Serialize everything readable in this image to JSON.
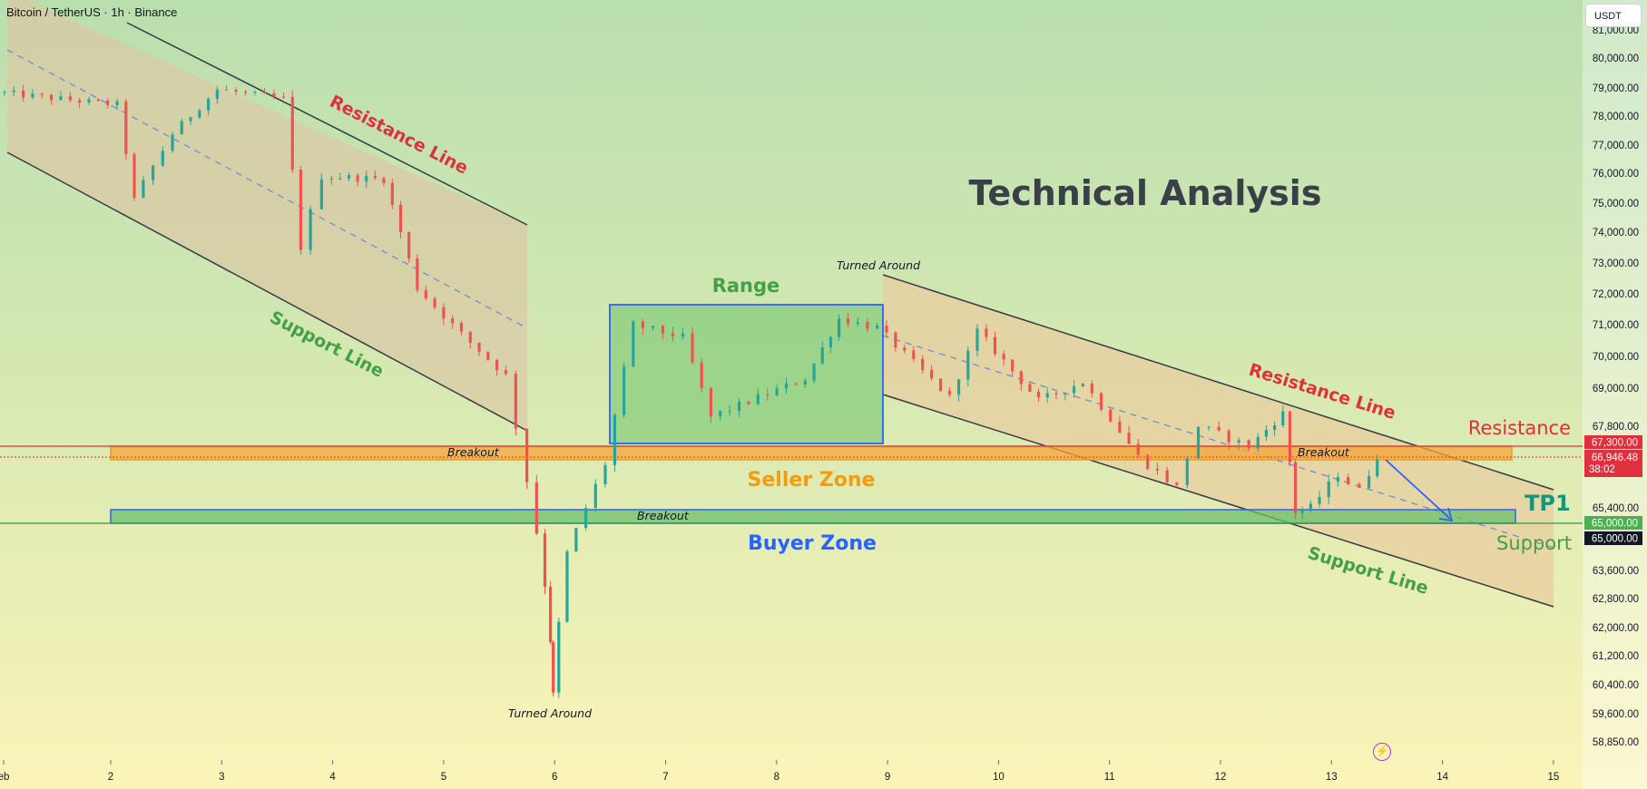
{
  "header": {
    "symbol_title": "Bitcoin / TetherUS · 1h · Binance",
    "currency_button": "USDT"
  },
  "colors": {
    "resistance_red": "#e0303e",
    "support_green": "#43a047",
    "seller_orange": "#f39c12",
    "buyer_blue": "#2962ff",
    "range_green": "#4caf50",
    "up_candle": "#26a69a",
    "down_candle": "#ef5350"
  },
  "icons": {
    "bolt": "bolt-icon"
  },
  "chart_data": {
    "type": "candlestick",
    "title": "Technical Analysis",
    "x_ticks": [
      "eb",
      "2",
      "3",
      "4",
      "5",
      "6",
      "7",
      "8",
      "9",
      "10",
      "11",
      "12",
      "13",
      "14",
      "15"
    ],
    "y_ticks": [
      "81,000.00",
      "80,000.00",
      "79,000.00",
      "78,000.00",
      "77,000.00",
      "76,000.00",
      "75,000.00",
      "74,000.00",
      "73,000.00",
      "72,000.00",
      "71,000.00",
      "70,000.00",
      "69,000.00",
      "67,800.00",
      "65,400.00",
      "63,600.00",
      "62,800.00",
      "62,000.00",
      "61,200.00",
      "60,400.00",
      "59,600.00",
      "58,850.00"
    ],
    "price_levels": {
      "resistance": {
        "label": "67,300.00",
        "value": 67300
      },
      "current": {
        "label": "66,946.48",
        "value": 66946.48,
        "countdown": "38:02"
      },
      "support_a": {
        "label": "65,000.00",
        "value": 65000
      },
      "support_b": {
        "label": "65,000.00",
        "value": 65000
      }
    },
    "x_domain": [
      1,
      15.8
    ],
    "y_scale": "piecewise",
    "segments": [
      {
        "x": [
          1.0,
          2.1
        ],
        "y": [
          78850,
          78400
        ]
      },
      {
        "x": [
          2.1,
          2.25
        ],
        "y": [
          78400,
          75100
        ]
      },
      {
        "x": [
          2.25,
          2.6
        ],
        "y": [
          75100,
          77400
        ]
      },
      {
        "x": [
          2.6,
          3.0
        ],
        "y": [
          77400,
          78950
        ]
      },
      {
        "x": [
          3.0,
          3.6
        ],
        "y": [
          78950,
          78600
        ]
      },
      {
        "x": [
          3.6,
          3.75
        ],
        "y": [
          78600,
          73500
        ]
      },
      {
        "x": [
          3.75,
          3.95
        ],
        "y": [
          73500,
          75900
        ]
      },
      {
        "x": [
          3.95,
          4.5
        ],
        "y": [
          75900,
          75800
        ]
      },
      {
        "x": [
          4.5,
          4.8
        ],
        "y": [
          75800,
          72200
        ]
      },
      {
        "x": [
          4.8,
          5.2
        ],
        "y": [
          72200,
          70700
        ]
      },
      {
        "x": [
          5.2,
          5.6
        ],
        "y": [
          70700,
          69400
        ]
      },
      {
        "x": [
          5.6,
          5.8
        ],
        "y": [
          69400,
          66200
        ]
      },
      {
        "x": [
          5.8,
          5.95
        ],
        "y": [
          66200,
          63200
        ]
      },
      {
        "x": [
          5.95,
          6.0
        ],
        "y": [
          63200,
          60100
        ]
      },
      {
        "x": [
          6.0,
          6.15
        ],
        "y": [
          60100,
          64100
        ]
      },
      {
        "x": [
          6.15,
          6.5
        ],
        "y": [
          64100,
          66700
        ]
      },
      {
        "x": [
          6.5,
          6.75
        ],
        "y": [
          66700,
          71000
        ]
      },
      {
        "x": [
          6.75,
          7.2
        ],
        "y": [
          71000,
          70600
        ]
      },
      {
        "x": [
          7.2,
          7.45
        ],
        "y": [
          70600,
          68100
        ]
      },
      {
        "x": [
          7.45,
          8.3
        ],
        "y": [
          68100,
          69300
        ]
      },
      {
        "x": [
          8.3,
          8.6
        ],
        "y": [
          69300,
          71200
        ]
      },
      {
        "x": [
          8.6,
          8.95
        ],
        "y": [
          71200,
          70900
        ]
      },
      {
        "x": [
          8.95,
          9.6
        ],
        "y": [
          70900,
          68700
        ]
      },
      {
        "x": [
          9.6,
          9.85
        ],
        "y": [
          68700,
          70800
        ]
      },
      {
        "x": [
          9.85,
          10.4
        ],
        "y": [
          70800,
          68600
        ]
      },
      {
        "x": [
          10.4,
          10.8
        ],
        "y": [
          68600,
          69200
        ]
      },
      {
        "x": [
          10.8,
          11.3
        ],
        "y": [
          69200,
          66900
        ]
      },
      {
        "x": [
          11.3,
          11.65
        ],
        "y": [
          66900,
          66000
        ]
      },
      {
        "x": [
          11.65,
          11.85
        ],
        "y": [
          66000,
          67800
        ]
      },
      {
        "x": [
          11.85,
          12.3
        ],
        "y": [
          67800,
          67200
        ]
      },
      {
        "x": [
          12.3,
          12.6
        ],
        "y": [
          67200,
          68200
        ]
      },
      {
        "x": [
          12.6,
          12.7
        ],
        "y": [
          68200,
          65300
        ]
      },
      {
        "x": [
          12.7,
          12.85
        ],
        "y": [
          65300,
          65400
        ]
      },
      {
        "x": [
          12.85,
          13.1
        ],
        "y": [
          65400,
          66400
        ]
      },
      {
        "x": [
          13.1,
          13.3
        ],
        "y": [
          66400,
          65900
        ]
      },
      {
        "x": [
          13.3,
          13.45
        ],
        "y": [
          65900,
          66950
        ]
      }
    ],
    "annotations": [
      {
        "text": "Technical Analysis",
        "kind": "title"
      },
      {
        "text": "Resistance Line",
        "kind": "channel-label"
      },
      {
        "text": "Support Line",
        "kind": "channel-label"
      },
      {
        "text": "Range",
        "kind": "zone-label"
      },
      {
        "text": "Turned Around",
        "kind": "note"
      },
      {
        "text": "Turned Around",
        "kind": "note"
      },
      {
        "text": "Resistance Line",
        "kind": "channel-label"
      },
      {
        "text": "Support Line",
        "kind": "channel-label"
      },
      {
        "text": "Breakout",
        "kind": "note"
      },
      {
        "text": "Breakout",
        "kind": "note"
      },
      {
        "text": "Breakout",
        "kind": "note"
      },
      {
        "text": "Seller Zone",
        "kind": "zone-label"
      },
      {
        "text": "Buyer Zone",
        "kind": "zone-label"
      },
      {
        "text": "Resistance",
        "kind": "level-label"
      },
      {
        "text": "TP1",
        "kind": "target"
      },
      {
        "text": "Support",
        "kind": "level-label"
      }
    ]
  }
}
